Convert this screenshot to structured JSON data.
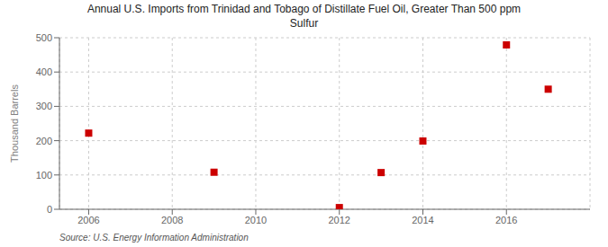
{
  "chart_data": {
    "type": "scatter",
    "title": "Annual U.S. Imports from Trinidad and Tobago of Distillate Fuel Oil, Greater Than 500 ppm\nSulfur",
    "y_label": "Thousand Barrels",
    "annotations": [
      "Source: U.S. Energy Information Administration"
    ],
    "x": [
      2006,
      2009,
      2012,
      2013,
      2014,
      2016,
      2017
    ],
    "values": [
      222,
      108,
      5,
      107,
      199,
      479,
      350
    ],
    "color": "#cc0000",
    "marker": "square",
    "xlim": [
      2005.3,
      2018.0
    ],
    "ylim": [
      0,
      500
    ],
    "xticks": [
      2006,
      2008,
      2010,
      2012,
      2014,
      2016
    ],
    "yticks": [
      0,
      100,
      200,
      300,
      400,
      500
    ],
    "grid": true
  }
}
